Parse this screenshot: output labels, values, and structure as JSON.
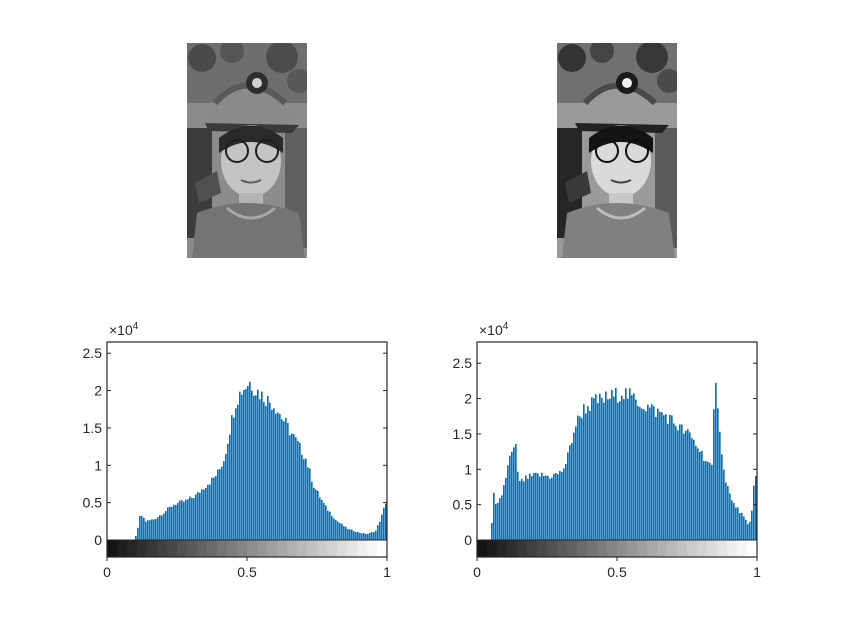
{
  "figure": {
    "images": [
      {
        "name": "original-grayscale-photo",
        "description_label": ""
      },
      {
        "name": "equalized-grayscale-photo",
        "description_label": ""
      }
    ]
  },
  "chart_data": [
    {
      "type": "bar",
      "title": "",
      "xlabel": "",
      "ylabel": "",
      "exponent_label": "×10",
      "exponent_power": "4",
      "xlim": [
        0,
        1
      ],
      "ylim": [
        -0.1,
        2.65
      ],
      "xticks": [
        0,
        0.5,
        1
      ],
      "xtick_labels": [
        "0",
        "0.5",
        "1"
      ],
      "yticks": [
        0,
        0.5,
        1,
        1.5,
        2,
        2.5
      ],
      "ytick_labels": [
        "0",
        "0.5",
        "1",
        "1.5",
        "2",
        "2.5"
      ],
      "bar_color": "#0072BD",
      "colorbar": "gray",
      "profile": [
        [
          0.0,
          0.0
        ],
        [
          0.1,
          0.0
        ],
        [
          0.11,
          0.15
        ],
        [
          0.12,
          0.35
        ],
        [
          0.14,
          0.25
        ],
        [
          0.17,
          0.28
        ],
        [
          0.2,
          0.36
        ],
        [
          0.24,
          0.48
        ],
        [
          0.28,
          0.52
        ],
        [
          0.32,
          0.6
        ],
        [
          0.35,
          0.72
        ],
        [
          0.38,
          0.82
        ],
        [
          0.4,
          0.92
        ],
        [
          0.42,
          1.1
        ],
        [
          0.44,
          1.5
        ],
        [
          0.46,
          1.85
        ],
        [
          0.48,
          2.0
        ],
        [
          0.5,
          2.08
        ],
        [
          0.51,
          2.12
        ],
        [
          0.53,
          2.02
        ],
        [
          0.56,
          1.92
        ],
        [
          0.6,
          1.8
        ],
        [
          0.64,
          1.55
        ],
        [
          0.68,
          1.3
        ],
        [
          0.71,
          1.1
        ],
        [
          0.74,
          0.72
        ],
        [
          0.78,
          0.45
        ],
        [
          0.82,
          0.26
        ],
        [
          0.86,
          0.15
        ],
        [
          0.9,
          0.1
        ],
        [
          0.93,
          0.08
        ],
        [
          0.96,
          0.12
        ],
        [
          0.98,
          0.3
        ],
        [
          1.0,
          0.55
        ]
      ]
    },
    {
      "type": "bar",
      "title": "",
      "xlabel": "",
      "ylabel": "",
      "exponent_label": "×10",
      "exponent_power": "4",
      "xlim": [
        0,
        1
      ],
      "ylim": [
        -0.1,
        2.8
      ],
      "xticks": [
        0,
        0.5,
        1
      ],
      "xtick_labels": [
        "0",
        "0.5",
        "1"
      ],
      "yticks": [
        0,
        0.5,
        1,
        1.5,
        2,
        2.5
      ],
      "ytick_labels": [
        "0",
        "0.5",
        "1",
        "1.5",
        "2",
        "2.5"
      ],
      "bar_color": "#0072BD",
      "colorbar": "gray",
      "profile": [
        [
          0.0,
          0.0
        ],
        [
          0.05,
          0.0
        ],
        [
          0.06,
          0.65
        ],
        [
          0.07,
          0.45
        ],
        [
          0.09,
          0.65
        ],
        [
          0.12,
          1.2
        ],
        [
          0.14,
          1.3
        ],
        [
          0.15,
          0.8
        ],
        [
          0.18,
          0.88
        ],
        [
          0.22,
          0.92
        ],
        [
          0.26,
          0.9
        ],
        [
          0.3,
          0.95
        ],
        [
          0.32,
          1.1
        ],
        [
          0.35,
          1.6
        ],
        [
          0.38,
          1.85
        ],
        [
          0.42,
          1.95
        ],
        [
          0.46,
          2.0
        ],
        [
          0.5,
          2.05
        ],
        [
          0.52,
          2.1
        ],
        [
          0.55,
          2.02
        ],
        [
          0.6,
          1.9
        ],
        [
          0.64,
          1.82
        ],
        [
          0.68,
          1.75
        ],
        [
          0.72,
          1.6
        ],
        [
          0.76,
          1.48
        ],
        [
          0.8,
          1.25
        ],
        [
          0.84,
          1.0
        ],
        [
          0.85,
          2.22
        ],
        [
          0.86,
          2.0
        ],
        [
          0.88,
          1.0
        ],
        [
          0.91,
          0.55
        ],
        [
          0.95,
          0.35
        ],
        [
          0.97,
          0.2
        ],
        [
          0.98,
          0.3
        ],
        [
          0.99,
          0.85
        ],
        [
          1.0,
          0.9
        ]
      ]
    }
  ]
}
